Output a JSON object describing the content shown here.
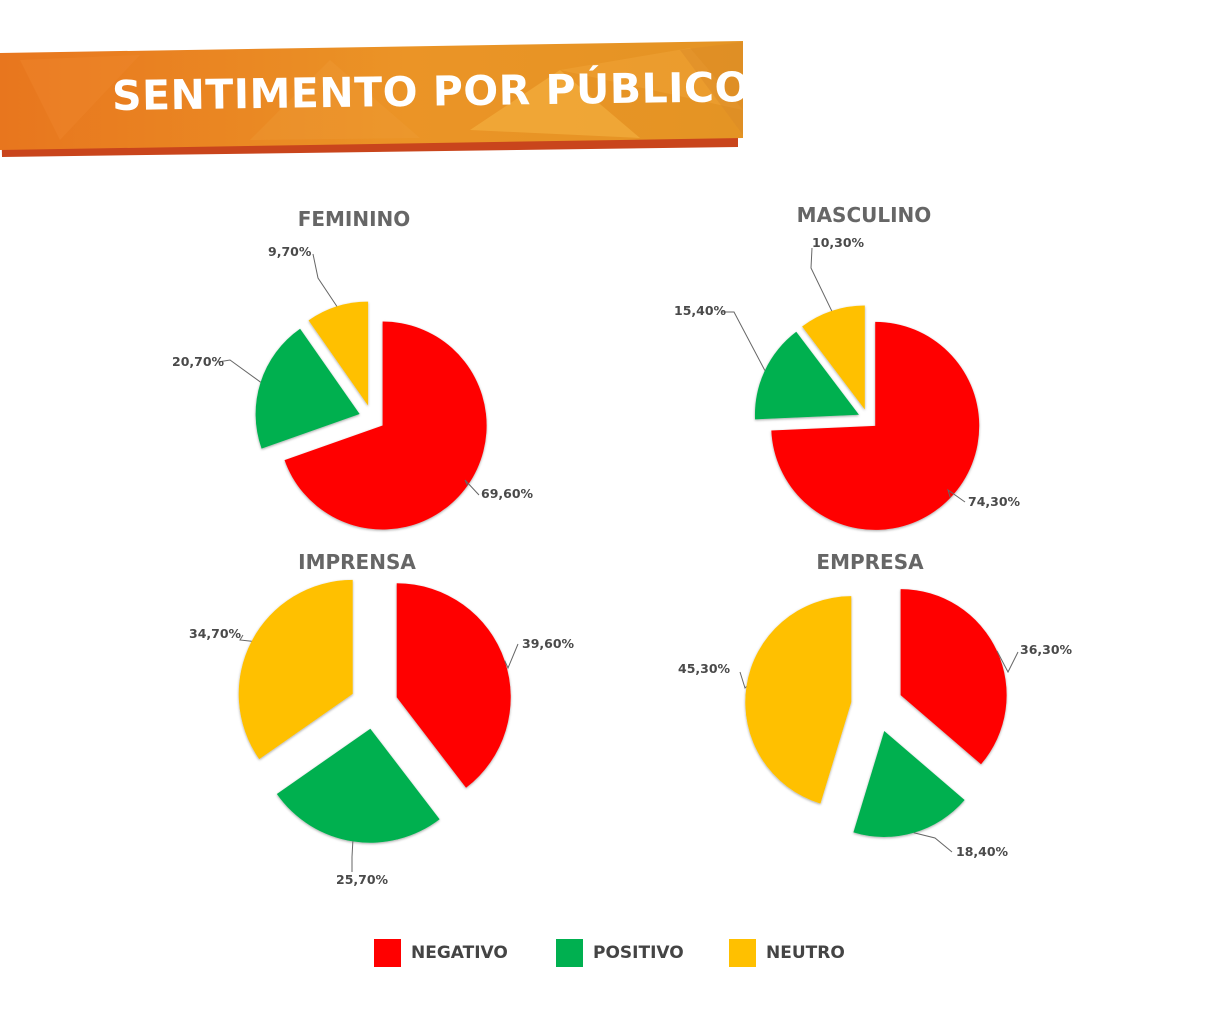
{
  "header": {
    "title": "SENTIMENTO POR PÚBLICO"
  },
  "colors": {
    "negativo": "#ff0000",
    "positivo": "#00b050",
    "neutro": "#ffc000",
    "banner": "#e98a1f",
    "title": "#666666"
  },
  "chart_data": [
    {
      "type": "pie",
      "title": "FEMININO",
      "slices": [
        {
          "category": "NEGATIVO",
          "value": 69.6,
          "label": "69,60%"
        },
        {
          "category": "POSITIVO",
          "value": 20.7,
          "label": "20,70%"
        },
        {
          "category": "NEUTRO",
          "value": 9.7,
          "label": "9,70%"
        }
      ]
    },
    {
      "type": "pie",
      "title": "MASCULINO",
      "slices": [
        {
          "category": "NEGATIVO",
          "value": 74.3,
          "label": "74,30%"
        },
        {
          "category": "POSITIVO",
          "value": 15.4,
          "label": "15,40%"
        },
        {
          "category": "NEUTRO",
          "value": 10.3,
          "label": "10,30%"
        }
      ]
    },
    {
      "type": "pie",
      "title": "IMPRENSA",
      "slices": [
        {
          "category": "NEGATIVO",
          "value": 39.6,
          "label": "39,60%"
        },
        {
          "category": "POSITIVO",
          "value": 25.7,
          "label": "25,70%"
        },
        {
          "category": "NEUTRO",
          "value": 34.7,
          "label": "34,70%"
        }
      ]
    },
    {
      "type": "pie",
      "title": "EMPRESA",
      "slices": [
        {
          "category": "NEGATIVO",
          "value": 36.3,
          "label": "36,30%"
        },
        {
          "category": "POSITIVO",
          "value": 18.4,
          "label": "18,40%"
        },
        {
          "category": "NEUTRO",
          "value": 45.3,
          "label": "45,30%"
        }
      ]
    }
  ],
  "legend": [
    {
      "label": "NEGATIVO",
      "color": "#ff0000"
    },
    {
      "label": "POSITIVO",
      "color": "#00b050"
    },
    {
      "label": "NEUTRO",
      "color": "#ffc000"
    }
  ]
}
